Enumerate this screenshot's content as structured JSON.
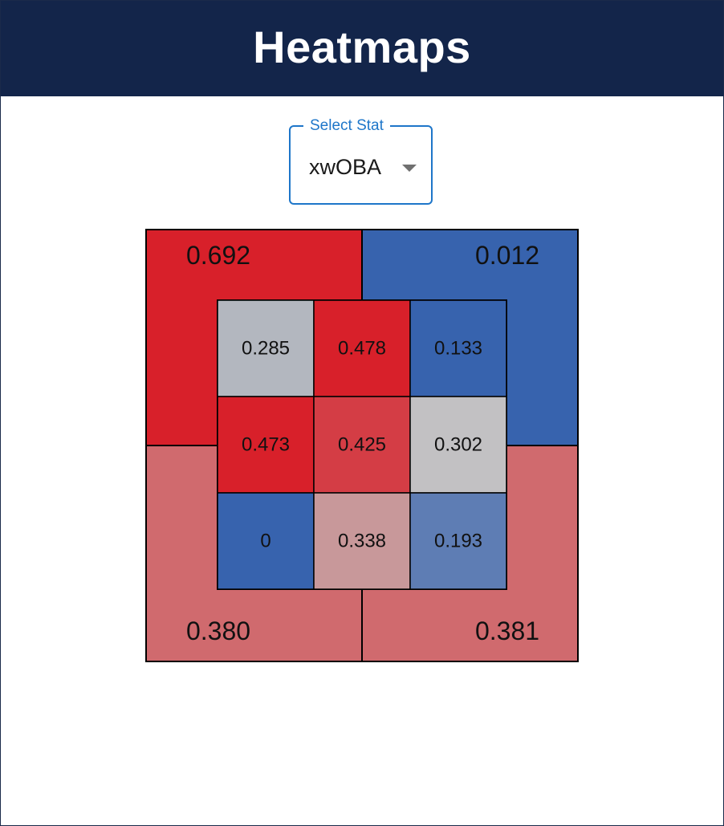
{
  "header": {
    "title": "Heatmaps"
  },
  "stat_select": {
    "label": "Select Stat",
    "selected": "xwOBA"
  },
  "chart_data": {
    "type": "heatmap",
    "title": "",
    "stat": "xwOBA",
    "outer_zones": [
      {
        "zone": "upper-left",
        "value": "0.692",
        "color": "#d8202a"
      },
      {
        "zone": "upper-right",
        "value": "0.012",
        "color": "#3763ae"
      },
      {
        "zone": "lower-left",
        "value": "0.380",
        "color": "#d06a6e"
      },
      {
        "zone": "lower-right",
        "value": "0.381",
        "color": "#d06a6e"
      }
    ],
    "inner_grid": [
      [
        {
          "value": "0.285",
          "color": "#b3b7bf"
        },
        {
          "value": "0.478",
          "color": "#d8202a"
        },
        {
          "value": "0.133",
          "color": "#3763ae"
        }
      ],
      [
        {
          "value": "0.473",
          "color": "#d8202a"
        },
        {
          "value": "0.425",
          "color": "#d43d45"
        },
        {
          "value": "0.302",
          "color": "#c2c1c3"
        }
      ],
      [
        {
          "value": "0",
          "color": "#3763ae"
        },
        {
          "value": "0.338",
          "color": "#c8989a"
        },
        {
          "value": "0.193",
          "color": "#5e7db4"
        }
      ]
    ]
  }
}
